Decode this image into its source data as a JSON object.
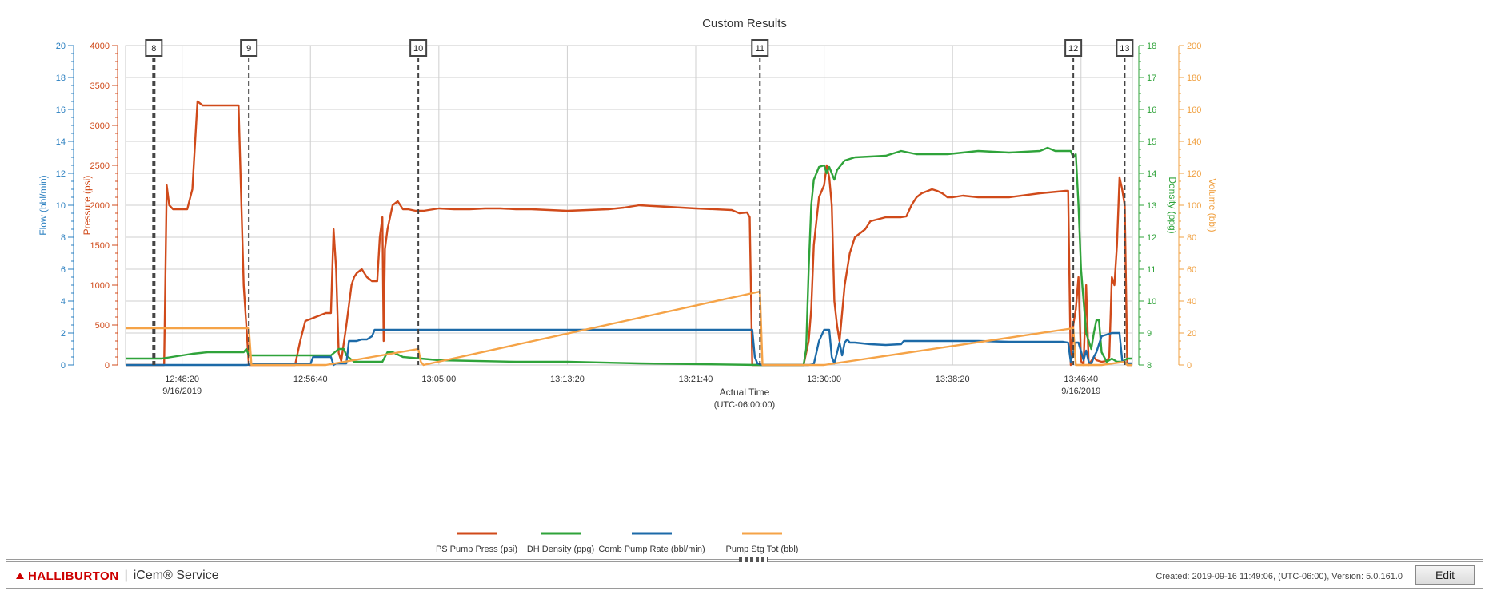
{
  "chart_data": {
    "type": "line",
    "title": "Custom Results",
    "xlabel": "Actual Time",
    "xlabel_sub": "(UTC-06:00:00)",
    "x_range": [
      "12:44:40",
      "13:50:00"
    ],
    "x_ticks": [
      {
        "t": "12:48:20",
        "date": "9/16/2019"
      },
      {
        "t": "12:56:40",
        "date": ""
      },
      {
        "t": "13:05:00",
        "date": ""
      },
      {
        "t": "13:13:20",
        "date": ""
      },
      {
        "t": "13:21:40",
        "date": ""
      },
      {
        "t": "13:30:00",
        "date": ""
      },
      {
        "t": "13:38:20",
        "date": ""
      },
      {
        "t": "13:46:40",
        "date": "9/16/2019"
      }
    ],
    "grid": true,
    "legend_position": "bottom",
    "axes": {
      "flow": {
        "label": "Flow (bbl/min)",
        "range": [
          0,
          20
        ],
        "ticks": [
          "0",
          "2",
          "4",
          "6",
          "8",
          "10",
          "12",
          "14",
          "16",
          "18",
          "20"
        ],
        "color": "#2a7fc0"
      },
      "pressure": {
        "label": "Pressure (psi)",
        "range": [
          0,
          4000
        ],
        "ticks": [
          "0",
          "500",
          "1000",
          "1500",
          "2000",
          "2500",
          "3000",
          "3500",
          "4000"
        ],
        "color": "#d04a1a"
      },
      "density": {
        "label": "Density (ppg)",
        "range": [
          8,
          18
        ],
        "ticks": [
          "8",
          "9",
          "10",
          "11",
          "12",
          "13",
          "14",
          "15",
          "16",
          "17",
          "18"
        ],
        "color": "#2fa33a"
      },
      "volume": {
        "label": "Volume (bbl)",
        "range": [
          0,
          200
        ],
        "ticks": [
          "0",
          "20",
          "40",
          "60",
          "80",
          "100",
          "120",
          "140",
          "160",
          "180",
          "200"
        ],
        "color": "#f0a040"
      }
    },
    "markers": [
      {
        "label": "8",
        "x": "12:46:30"
      },
      {
        "label": "9",
        "x": "12:52:40"
      },
      {
        "label": "10",
        "x": "13:03:40"
      },
      {
        "label": "11",
        "x": "13:25:50"
      },
      {
        "label": "12",
        "x": "13:46:10"
      },
      {
        "label": "13",
        "x": "13:49:30"
      }
    ],
    "series": [
      {
        "name": "PS Pump Press (psi)",
        "axis": "pressure",
        "color": "#d04a1a",
        "x": [
          "12:44:40",
          "12:47:10",
          "12:47:20",
          "12:47:30",
          "12:47:45",
          "12:48:00",
          "12:48:20",
          "12:48:40",
          "12:49:00",
          "12:49:20",
          "12:49:40",
          "12:50:00",
          "12:51:00",
          "12:51:20",
          "12:51:40",
          "12:52:00",
          "12:52:20",
          "12:52:40",
          "12:54:00",
          "12:55:20",
          "12:55:40",
          "12:56:00",
          "12:56:20",
          "12:57:00",
          "12:57:40",
          "12:58:00",
          "12:58:10",
          "12:58:20",
          "12:58:30",
          "12:58:40",
          "12:59:00",
          "12:59:20",
          "12:59:30",
          "12:59:40",
          "13:00:00",
          "13:00:20",
          "13:00:40",
          "13:01:00",
          "13:01:10",
          "13:01:20",
          "13:01:25",
          "13:01:30",
          "13:01:40",
          "13:02:00",
          "13:02:20",
          "13:02:40",
          "13:03:00",
          "13:03:30",
          "13:04:00",
          "13:05:00",
          "13:06:00",
          "13:07:00",
          "13:08:00",
          "13:09:00",
          "13:10:00",
          "13:11:00",
          "13:13:20",
          "13:16:00",
          "13:17:00",
          "13:18:00",
          "13:21:40",
          "13:24:00",
          "13:24:30",
          "13:25:00",
          "13:25:10",
          "13:25:20",
          "13:25:40",
          "13:26:00",
          "13:28:40",
          "13:29:00",
          "13:29:10",
          "13:29:20",
          "13:29:40",
          "13:30:00",
          "13:30:10",
          "13:30:20",
          "13:30:30",
          "13:30:40",
          "13:30:50",
          "13:31:00",
          "13:31:20",
          "13:31:40",
          "13:32:00",
          "13:32:20",
          "13:32:40",
          "13:33:00",
          "13:34:00",
          "13:35:00",
          "13:35:20",
          "13:35:40",
          "13:36:00",
          "13:36:20",
          "13:37:00",
          "13:37:20",
          "13:37:40",
          "13:38:00",
          "13:38:20",
          "13:39:00",
          "13:40:00",
          "13:42:00",
          "13:44:00",
          "13:45:40",
          "13:45:50",
          "13:46:00",
          "13:46:10",
          "13:46:20",
          "13:46:30",
          "13:46:40",
          "13:46:50",
          "13:47:00",
          "13:47:10",
          "13:47:20",
          "13:47:30",
          "13:47:40",
          "13:48:00",
          "13:48:20",
          "13:48:30",
          "13:48:40",
          "13:48:50",
          "13:49:00",
          "13:49:10",
          "13:49:20",
          "13:49:30",
          "13:49:40",
          "13:50:00"
        ],
        "values": [
          0,
          0,
          2250,
          2000,
          1950,
          1950,
          1950,
          1950,
          2200,
          3300,
          3250,
          3250,
          3250,
          3250,
          3250,
          3250,
          1000,
          0,
          0,
          0,
          0,
          300,
          550,
          600,
          650,
          650,
          1700,
          1200,
          150,
          50,
          500,
          1000,
          1100,
          1150,
          1200,
          1100,
          1050,
          1050,
          1600,
          1850,
          300,
          1450,
          1700,
          2000,
          2050,
          1950,
          1950,
          1930,
          1930,
          1960,
          1950,
          1950,
          1960,
          1960,
          1950,
          1950,
          1930,
          1950,
          1970,
          2000,
          1960,
          1940,
          1900,
          1910,
          1850,
          0,
          0,
          0,
          0,
          300,
          700,
          1500,
          2100,
          2250,
          2500,
          2350,
          2000,
          800,
          500,
          300,
          1000,
          1400,
          1600,
          1650,
          1700,
          1800,
          1850,
          1850,
          1860,
          2000,
          2100,
          2150,
          2200,
          2180,
          2150,
          2100,
          2100,
          2120,
          2100,
          2100,
          2150,
          2180,
          2180,
          0,
          500,
          700,
          1100,
          50,
          0,
          1000,
          0,
          50,
          100,
          60,
          40,
          50,
          100,
          1100,
          1000,
          1500,
          2350,
          2200,
          2000,
          0,
          0
        ],
        "note": ""
      },
      {
        "name": "DH Density (ppg)",
        "axis": "density",
        "color": "#2fa33a",
        "x": [
          "12:44:40",
          "12:47:00",
          "12:48:20",
          "12:49:00",
          "12:50:00",
          "12:51:00",
          "12:52:20",
          "12:52:30",
          "12:52:40",
          "12:55:00",
          "12:56:00",
          "12:58:00",
          "12:58:30",
          "12:58:50",
          "12:59:00",
          "12:59:30",
          "13:01:20",
          "13:01:40",
          "13:02:00",
          "13:02:40",
          "13:05:00",
          "13:10:00",
          "13:13:20",
          "13:18:00",
          "13:25:50",
          "13:26:00",
          "13:28:40",
          "13:28:50",
          "13:29:00",
          "13:29:10",
          "13:29:20",
          "13:29:30",
          "13:29:40",
          "13:30:00",
          "13:30:10",
          "13:30:20",
          "13:30:30",
          "13:30:40",
          "13:30:50",
          "13:31:00",
          "13:31:20",
          "13:32:00",
          "13:34:00",
          "13:35:00",
          "13:36:00",
          "13:38:00",
          "13:40:00",
          "13:42:00",
          "13:44:00",
          "13:44:30",
          "13:45:00",
          "13:46:00",
          "13:46:10",
          "13:46:20",
          "13:46:30",
          "13:46:40",
          "13:47:00",
          "13:47:20",
          "13:47:30",
          "13:47:40",
          "13:47:50",
          "13:48:00",
          "13:48:20",
          "13:48:40",
          "13:49:00",
          "13:49:20",
          "13:49:40",
          "13:50:00"
        ],
        "values": [
          8.2,
          8.2,
          8.3,
          8.35,
          8.4,
          8.4,
          8.4,
          8.5,
          8.3,
          8.3,
          8.3,
          8.3,
          8.5,
          8.5,
          8.3,
          8.1,
          8.1,
          8.4,
          8.4,
          8.25,
          8.15,
          8.1,
          8.1,
          8.05,
          8.0,
          8.0,
          8.0,
          8.5,
          11.0,
          13.0,
          13.8,
          14.0,
          14.2,
          14.25,
          14.0,
          14.2,
          14.0,
          13.8,
          14.1,
          14.2,
          14.4,
          14.5,
          14.55,
          14.7,
          14.6,
          14.6,
          14.7,
          14.65,
          14.7,
          14.8,
          14.7,
          14.7,
          14.5,
          14.6,
          13.0,
          11.0,
          9.0,
          8.5,
          9.0,
          9.4,
          9.4,
          8.4,
          8.1,
          8.2,
          8.1,
          8.1,
          8.2,
          8.2
        ]
      },
      {
        "name": "Comb Pump Rate (bbl/min)",
        "axis": "flow",
        "color": "#1c6aa8",
        "x": [
          "12:44:40",
          "12:52:30",
          "12:53:00",
          "12:56:40",
          "12:56:50",
          "12:57:00",
          "12:58:00",
          "12:58:10",
          "12:58:20",
          "12:59:00",
          "12:59:10",
          "12:59:20",
          "12:59:40",
          "13:00:00",
          "13:00:20",
          "13:00:40",
          "13:00:50",
          "13:01:00",
          "13:01:20",
          "13:05:00",
          "13:13:20",
          "13:21:40",
          "13:25:20",
          "13:25:30",
          "13:25:40",
          "13:26:00",
          "13:28:40",
          "13:29:00",
          "13:29:20",
          "13:29:40",
          "13:30:00",
          "13:30:20",
          "13:30:30",
          "13:30:40",
          "13:31:00",
          "13:31:10",
          "13:31:20",
          "13:31:30",
          "13:31:40",
          "13:32:00",
          "13:33:00",
          "13:34:00",
          "13:35:00",
          "13:35:10",
          "13:36:00",
          "13:38:20",
          "13:40:00",
          "13:42:00",
          "13:44:00",
          "13:45:30",
          "13:45:50",
          "13:46:00",
          "13:46:20",
          "13:46:30",
          "13:46:50",
          "13:47:00",
          "13:47:10",
          "13:47:20",
          "13:47:30",
          "13:47:40",
          "13:48:00",
          "13:48:20",
          "13:48:40",
          "13:49:10",
          "13:49:20",
          "13:49:30",
          "13:50:00"
        ],
        "values": [
          0,
          0,
          0.05,
          0.05,
          0.5,
          0.5,
          0.5,
          0,
          0.1,
          0.1,
          1.5,
          1.5,
          1.5,
          1.6,
          1.6,
          1.8,
          2.2,
          2.2,
          2.2,
          2.2,
          2.2,
          2.2,
          2.2,
          0.5,
          0.1,
          0,
          0,
          0,
          0.05,
          1.5,
          2.2,
          2.2,
          0.5,
          0.1,
          1.4,
          0.6,
          1.4,
          1.6,
          1.4,
          1.4,
          1.3,
          1.25,
          1.3,
          1.5,
          1.5,
          1.5,
          1.5,
          1.45,
          1.45,
          1.45,
          1.4,
          0.2,
          1.4,
          1.4,
          0.3,
          0.9,
          0.2,
          0.05,
          0.5,
          0.8,
          1.8,
          1.9,
          2.0,
          2.0,
          0.3,
          0.1,
          0.1
        ]
      },
      {
        "name": "Pump Stg Tot (bbl)",
        "axis": "volume",
        "color": "#f5a347",
        "x": [
          "12:44:40",
          "12:52:40",
          "12:52:50",
          "12:57:40",
          "13:03:40",
          "13:03:50",
          "13:04:00",
          "13:25:50",
          "13:26:00",
          "13:30:00",
          "13:46:10",
          "13:46:20",
          "13:48:00",
          "13:49:30",
          "13:49:40",
          "13:50:00"
        ],
        "values": [
          23,
          23,
          0,
          0,
          10,
          2,
          0,
          46,
          0,
          0,
          23,
          0,
          0,
          2,
          0,
          0
        ]
      }
    ]
  },
  "footer": {
    "brand": "HALLIBURTON",
    "product": "iCem® Service",
    "created": "Created: 2019-09-16  11:49:06, (UTC-06:00),   Version: 5.0.161.0",
    "edit_label": "Edit"
  }
}
